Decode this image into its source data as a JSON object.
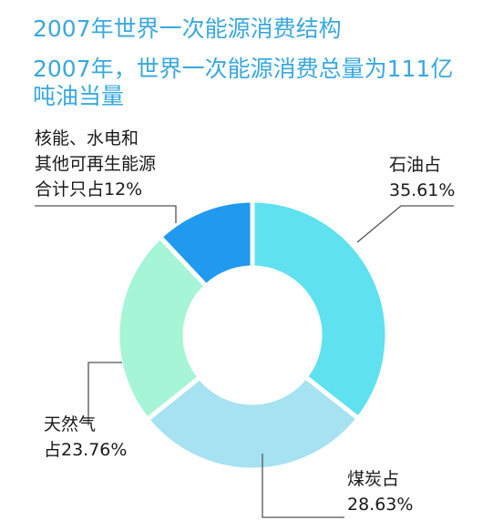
{
  "title_line1": "2007年世界一次能源消费结构",
  "title_line2": "2007年，世界一次能源消费总量为111亿吨油当量",
  "chart_data": {
    "type": "pie",
    "variant": "donut",
    "slices": [
      {
        "label_lines": [
          "石油占",
          "35.61%"
        ],
        "value": 35.61,
        "color": "#5fe1f0"
      },
      {
        "label_lines": [
          "煤炭占",
          "28.63%"
        ],
        "value": 28.63,
        "color": "#a6e2f2"
      },
      {
        "label_lines": [
          "天然气",
          "占23.76%"
        ],
        "value": 23.76,
        "color": "#a6f5d6"
      },
      {
        "label_lines": [
          "核能、水电和",
          "其他可再生能源",
          "合计只占12%"
        ],
        "value": 12.0,
        "color": "#209aee"
      }
    ]
  }
}
